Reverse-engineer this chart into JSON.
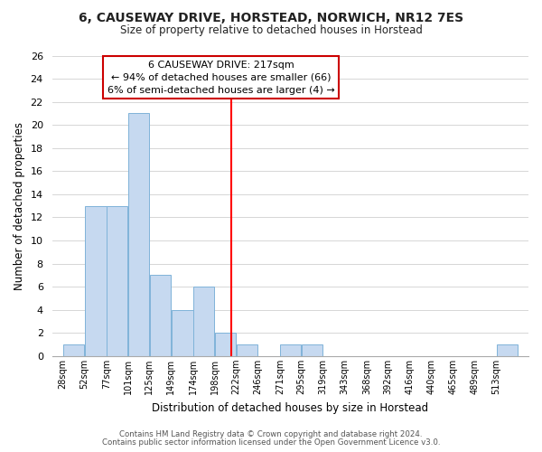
{
  "title": "6, CAUSEWAY DRIVE, HORSTEAD, NORWICH, NR12 7ES",
  "subtitle": "Size of property relative to detached houses in Horstead",
  "xlabel": "Distribution of detached houses by size in Horstead",
  "ylabel": "Number of detached properties",
  "bar_labels": [
    "28sqm",
    "52sqm",
    "77sqm",
    "101sqm",
    "125sqm",
    "149sqm",
    "174sqm",
    "198sqm",
    "222sqm",
    "246sqm",
    "271sqm",
    "295sqm",
    "319sqm",
    "343sqm",
    "368sqm",
    "392sqm",
    "416sqm",
    "440sqm",
    "465sqm",
    "489sqm",
    "513sqm"
  ],
  "bar_values": [
    1,
    13,
    13,
    21,
    7,
    4,
    6,
    2,
    1,
    0,
    1,
    1,
    0,
    0,
    0,
    0,
    0,
    0,
    0,
    0,
    1
  ],
  "bar_color": "#c6d9f0",
  "bar_edge_color": "#7fb3d9",
  "property_line_color": "#ff0000",
  "property_line_value": 217,
  "bin_edges": [
    28,
    52,
    77,
    101,
    125,
    149,
    174,
    198,
    222,
    246,
    271,
    295,
    319,
    343,
    368,
    392,
    416,
    440,
    465,
    489,
    513,
    537
  ],
  "annotation_title": "6 CAUSEWAY DRIVE: 217sqm",
  "annotation_line1": "← 94% of detached houses are smaller (66)",
  "annotation_line2": "6% of semi-detached houses are larger (4) →",
  "annotation_box_color": "#ffffff",
  "annotation_box_edge": "#cc0000",
  "ylim": [
    0,
    26
  ],
  "yticks": [
    0,
    2,
    4,
    6,
    8,
    10,
    12,
    14,
    16,
    18,
    20,
    22,
    24,
    26
  ],
  "footer1": "Contains HM Land Registry data © Crown copyright and database right 2024.",
  "footer2": "Contains public sector information licensed under the Open Government Licence v3.0.",
  "background_color": "#ffffff",
  "grid_color": "#d0d0d0"
}
